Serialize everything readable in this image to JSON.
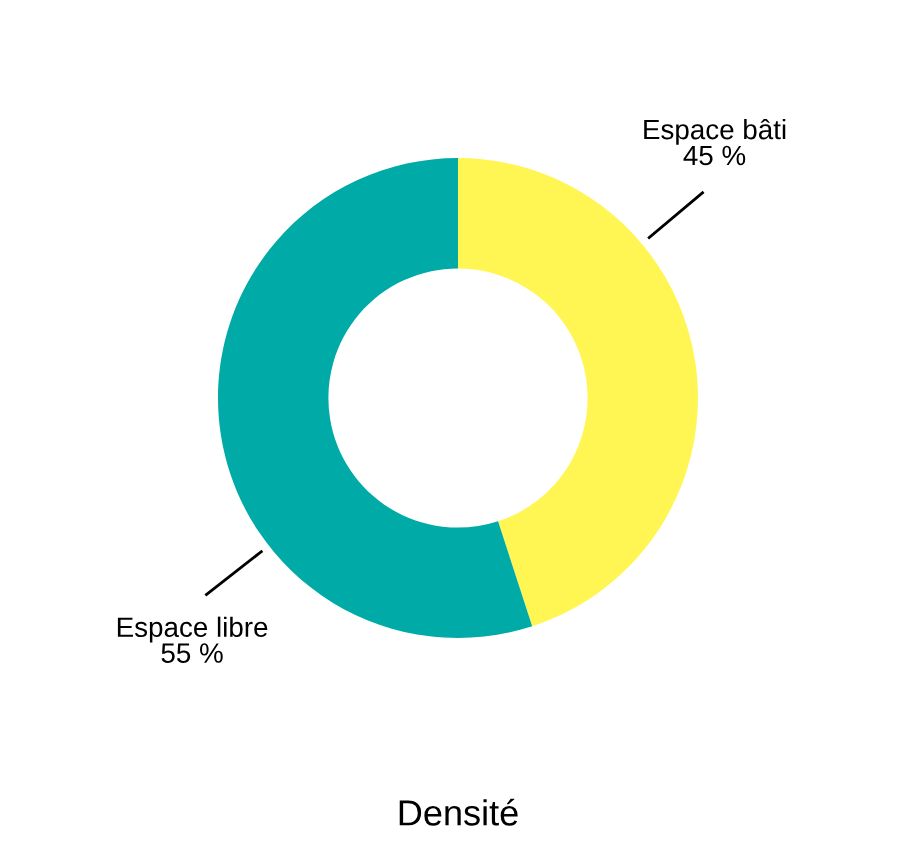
{
  "chart_data": {
    "type": "donut",
    "title": "Densité",
    "categories": [
      "Espace bâti",
      "Espace libre"
    ],
    "values": [
      45,
      55
    ],
    "colors": [
      "#fff653",
      "#00aaa6"
    ],
    "value_labels": [
      "45 %",
      "55 %"
    ]
  }
}
